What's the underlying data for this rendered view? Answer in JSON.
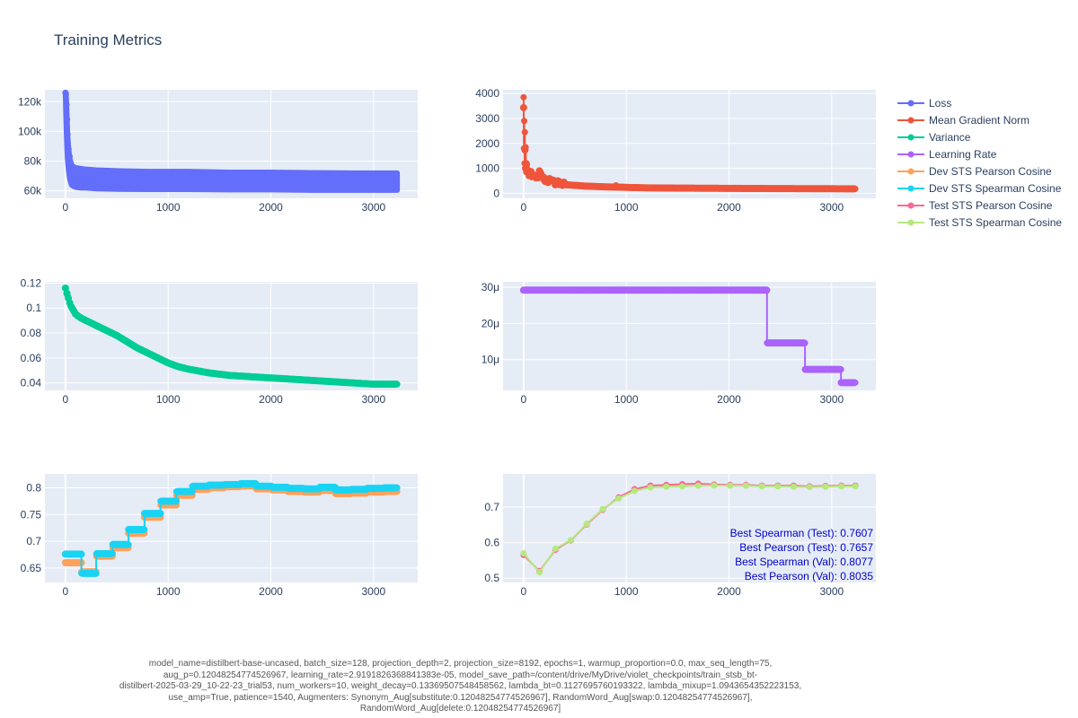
{
  "title": "Training Metrics",
  "colors": {
    "loss": "#636efa",
    "grad": "#ef553b",
    "variance": "#00cc96",
    "lr": "#ab63fa",
    "dev_pearson": "#ffa15a",
    "dev_spearman": "#19d3f3",
    "test_pearson": "#ff6692",
    "test_spearman": "#b6e880",
    "plot_bg": "#e5ecf6",
    "annotation": "#0000cc"
  },
  "legend": {
    "placement": "right",
    "items": [
      "Loss",
      "Mean Gradient Norm",
      "Variance",
      "Learning Rate",
      "Dev STS Pearson Cosine",
      "Dev STS Spearman Cosine",
      "Test STS Pearson Cosine",
      "Test STS Spearman Cosine"
    ]
  },
  "annotations": [
    "Best Spearman (Test): 0.7607",
    "Best Pearson (Test): 0.7657",
    "Best Spearman (Val): 0.8077",
    "Best Pearson (Val): 0.8035"
  ],
  "caption_lines": [
    "model_name=distilbert-base-uncased, batch_size=128, projection_depth=2, projection_size=8192, epochs=1, warmup_proportion=0.0, max_seq_length=75,",
    "aug_p=0.12048254774526967, learning_rate=2.9191826368841383e-05, model_save_path=/content/drive/MyDrive/violet_checkpoints/train_stsb_bt-",
    "distilbert-2025-03-29_10-22-23_trial53, num_workers=10, weight_decay=0.13369507548458562, lambda_bt=0.1127695760193322, lambda_mixup=1.0943654352223153,",
    "use_amp=True, patience=1540, Augmenters: Synonym_Aug[substitute:0.12048254774526967], RandomWord_Aug[swap:0.12048254774526967],",
    "RandomWord_Aug[delete:0.12048254774526967]"
  ],
  "chart_data": [
    {
      "type": "scatter",
      "mode": "lines+markers",
      "grid": true,
      "xlim": [
        -200,
        3430
      ],
      "ylim": [
        55000,
        128000
      ],
      "xticks": [
        0,
        1000,
        2000,
        3000
      ],
      "xtick_labels": [
        "0",
        "1000",
        "2000",
        "3000"
      ],
      "yticks": [
        60000,
        80000,
        100000,
        120000
      ],
      "ytick_labels": [
        "60k",
        "80k",
        "100k",
        "120k"
      ],
      "series": [
        {
          "name": "Loss",
          "x": [
            0,
            5,
            10,
            15,
            20,
            30,
            40,
            50,
            60,
            80,
            100,
            150,
            200,
            300,
            500,
            800,
            1200,
            1600,
            2000,
            2400,
            2800,
            3230
          ],
          "y": [
            126000,
            118000,
            110000,
            100000,
            92000,
            84000,
            79000,
            75000,
            72000,
            70000,
            69000,
            68500,
            68000,
            67500,
            67000,
            66800,
            66500,
            66300,
            66000,
            66000,
            65800,
            65500
          ],
          "band_low": [
            126000,
            112000,
            100000,
            90000,
            82000,
            74000,
            69000,
            66000,
            64000,
            63000,
            62500,
            62000,
            62000,
            61500,
            61200,
            61000,
            61000,
            60800,
            60800,
            60500,
            60500,
            60500
          ],
          "band_high": [
            126000,
            125000,
            118000,
            108000,
            98000,
            88000,
            83000,
            79000,
            77000,
            76000,
            75500,
            75000,
            74500,
            74000,
            73500,
            73000,
            73000,
            72500,
            72500,
            72200,
            72000,
            72000
          ]
        }
      ]
    },
    {
      "type": "scatter",
      "mode": "lines+markers",
      "grid": true,
      "xlim": [
        -200,
        3430
      ],
      "ylim": [
        -200,
        4150
      ],
      "xticks": [
        0,
        1000,
        2000,
        3000
      ],
      "xtick_labels": [
        "0",
        "1000",
        "2000",
        "3000"
      ],
      "yticks": [
        0,
        1000,
        2000,
        3000,
        4000
      ],
      "ytick_labels": [
        "0",
        "1000",
        "2000",
        "3000",
        "4000"
      ],
      "series": [
        {
          "name": "Mean Gradient Norm",
          "x": [
            0,
            3,
            6,
            9,
            12,
            15,
            20,
            25,
            30,
            40,
            50,
            60,
            80,
            100,
            120,
            150,
            200,
            300,
            400,
            500,
            600,
            800,
            1000,
            1200,
            1500,
            2000,
            2500,
            3000,
            3230
          ],
          "y": [
            3850,
            1800,
            2900,
            1200,
            2450,
            1000,
            1850,
            850,
            1200,
            950,
            700,
            800,
            650,
            700,
            600,
            850,
            500,
            420,
            350,
            320,
            290,
            260,
            240,
            220,
            210,
            200,
            190,
            185,
            180
          ],
          "spikes": [
            [
              150,
              900
            ],
            [
              900,
              320
            ]
          ]
        }
      ]
    },
    {
      "type": "scatter",
      "mode": "lines+markers",
      "grid": true,
      "xlim": [
        -200,
        3430
      ],
      "ylim": [
        0.034,
        0.121
      ],
      "xticks": [
        0,
        1000,
        2000,
        3000
      ],
      "xtick_labels": [
        "0",
        "1000",
        "2000",
        "3000"
      ],
      "yticks": [
        0.04,
        0.06,
        0.08,
        0.1,
        0.12
      ],
      "ytick_labels": [
        "0.04",
        "0.06",
        "0.08",
        "0.1",
        "0.12"
      ],
      "series": [
        {
          "name": "Variance",
          "x": [
            0,
            20,
            50,
            100,
            150,
            200,
            300,
            400,
            500,
            600,
            700,
            800,
            900,
            1000,
            1100,
            1200,
            1400,
            1600,
            1800,
            2000,
            2200,
            2400,
            2600,
            2800,
            3000,
            3230
          ],
          "y": [
            0.116,
            0.11,
            0.102,
            0.095,
            0.092,
            0.09,
            0.086,
            0.082,
            0.078,
            0.073,
            0.068,
            0.064,
            0.06,
            0.056,
            0.053,
            0.051,
            0.048,
            0.046,
            0.045,
            0.044,
            0.043,
            0.042,
            0.041,
            0.04,
            0.039,
            0.039
          ]
        }
      ]
    },
    {
      "type": "scatter",
      "mode": "lines+markers",
      "grid": true,
      "xlim": [
        -200,
        3430
      ],
      "ylim": [
        1.5e-06,
        3.15e-05
      ],
      "xticks": [
        0,
        1000,
        2000,
        3000
      ],
      "xtick_labels": [
        "0",
        "1000",
        "2000",
        "3000"
      ],
      "yticks": [
        1e-05,
        2e-05,
        3e-05
      ],
      "ytick_labels": [
        "10μ",
        "20μ",
        "30μ"
      ],
      "series": [
        {
          "name": "Learning Rate",
          "x": [
            0,
            2370,
            2370,
            2740,
            2740,
            3090,
            3090,
            3230
          ],
          "y": [
            2.92e-05,
            2.92e-05,
            1.46e-05,
            1.46e-05,
            7.3e-06,
            7.3e-06,
            3.65e-06,
            3.65e-06
          ]
        }
      ]
    },
    {
      "type": "scatter",
      "mode": "lines+markers",
      "grid": true,
      "xlim": [
        -200,
        3430
      ],
      "ylim": [
        0.623,
        0.826
      ],
      "xticks": [
        0,
        1000,
        2000,
        3000
      ],
      "xtick_labels": [
        "0",
        "1000",
        "2000",
        "3000"
      ],
      "yticks": [
        0.65,
        0.7,
        0.75,
        0.8
      ],
      "ytick_labels": [
        "0.65",
        "0.7",
        "0.75",
        "0.8"
      ],
      "series": [
        {
          "name": "Dev STS Pearson Cosine",
          "x": [
            0,
            155,
            155,
            300,
            300,
            460,
            460,
            615,
            615,
            770,
            770,
            925,
            925,
            1080,
            1080,
            1235,
            1235,
            1390,
            1390,
            1545,
            1545,
            1700,
            1700,
            1855,
            1855,
            2010,
            2010,
            2165,
            2165,
            2320,
            2320,
            2475,
            2475,
            2630,
            2630,
            2785,
            2785,
            2940,
            2940,
            3095,
            3095,
            3230
          ],
          "y": [
            0.66,
            0.66,
            0.643,
            0.643,
            0.672,
            0.672,
            0.688,
            0.688,
            0.715,
            0.715,
            0.745,
            0.745,
            0.768,
            0.768,
            0.786,
            0.786,
            0.797,
            0.797,
            0.8,
            0.8,
            0.802,
            0.802,
            0.8035,
            0.8035,
            0.798,
            0.798,
            0.796,
            0.796,
            0.793,
            0.793,
            0.792,
            0.792,
            0.795,
            0.795,
            0.789,
            0.789,
            0.79,
            0.79,
            0.792,
            0.792,
            0.793,
            0.793
          ]
        },
        {
          "name": "Dev STS Spearman Cosine",
          "x": [
            0,
            155,
            155,
            300,
            300,
            460,
            460,
            615,
            615,
            770,
            770,
            925,
            925,
            1080,
            1080,
            1235,
            1235,
            1390,
            1390,
            1545,
            1545,
            1700,
            1700,
            1855,
            1855,
            2010,
            2010,
            2165,
            2165,
            2320,
            2320,
            2475,
            2475,
            2630,
            2630,
            2785,
            2785,
            2940,
            2940,
            3095,
            3095,
            3230
          ],
          "y": [
            0.676,
            0.676,
            0.64,
            0.64,
            0.677,
            0.677,
            0.694,
            0.694,
            0.722,
            0.722,
            0.752,
            0.752,
            0.775,
            0.775,
            0.793,
            0.793,
            0.803,
            0.803,
            0.805,
            0.805,
            0.806,
            0.806,
            0.8077,
            0.8077,
            0.803,
            0.803,
            0.801,
            0.801,
            0.799,
            0.799,
            0.798,
            0.798,
            0.801,
            0.801,
            0.796,
            0.796,
            0.797,
            0.797,
            0.799,
            0.799,
            0.8,
            0.8
          ]
        }
      ]
    },
    {
      "type": "scatter",
      "mode": "lines+markers",
      "grid": true,
      "xlim": [
        -200,
        3430
      ],
      "ylim": [
        0.488,
        0.793
      ],
      "xticks": [
        0,
        1000,
        2000,
        3000
      ],
      "xtick_labels": [
        "0",
        "1000",
        "2000",
        "3000"
      ],
      "yticks": [
        0.5,
        0.6,
        0.7
      ],
      "ytick_labels": [
        "0.5",
        "0.6",
        "0.7"
      ],
      "series": [
        {
          "name": "Test STS Pearson Cosine",
          "x": [
            0,
            155,
            310,
            460,
            615,
            770,
            925,
            1080,
            1235,
            1390,
            1545,
            1700,
            1855,
            2010,
            2165,
            2320,
            2475,
            2630,
            2785,
            2940,
            3095,
            3230
          ],
          "y": [
            0.565,
            0.52,
            0.58,
            0.606,
            0.651,
            0.692,
            0.727,
            0.75,
            0.76,
            0.762,
            0.764,
            0.7657,
            0.763,
            0.762,
            0.762,
            0.76,
            0.76,
            0.76,
            0.758,
            0.759,
            0.76,
            0.76
          ]
        },
        {
          "name": "Test STS Spearman Cosine",
          "x": [
            0,
            155,
            310,
            460,
            615,
            770,
            925,
            1080,
            1235,
            1390,
            1545,
            1700,
            1855,
            2010,
            2165,
            2320,
            2475,
            2630,
            2785,
            2940,
            3095,
            3230
          ],
          "y": [
            0.57,
            0.517,
            0.583,
            0.607,
            0.653,
            0.694,
            0.724,
            0.745,
            0.755,
            0.757,
            0.758,
            0.76,
            0.7607,
            0.76,
            0.76,
            0.758,
            0.758,
            0.757,
            0.756,
            0.757,
            0.758,
            0.758
          ]
        }
      ]
    }
  ]
}
